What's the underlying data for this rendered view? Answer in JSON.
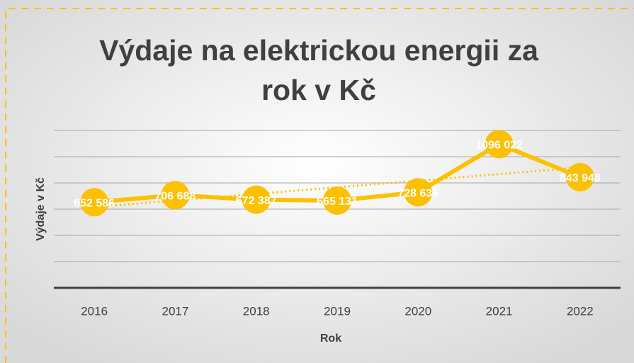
{
  "chart_data": {
    "type": "line",
    "title": "Výdaje na elektrickou energii za rok v Kč",
    "x_label": "Rok",
    "y_label": "Výdaje v Kč",
    "categories": [
      "2016",
      "2017",
      "2018",
      "2019",
      "2020",
      "2021",
      "2022"
    ],
    "series": [
      {
        "color": "#ffc000",
        "values": [
          652586,
          706688,
          672387,
          665131,
          728636,
          1096022,
          843948
        ],
        "value_labels": [
          "652 586",
          "706 688",
          "672 387",
          "665 131",
          "728 636",
          "1096 022",
          "843 948"
        ]
      }
    ],
    "trendline": "linear",
    "ylim": [
      0,
      1200000
    ],
    "yticks": [
      0,
      200000,
      400000,
      600000,
      800000,
      1000000,
      1200000
    ],
    "grid": true
  }
}
